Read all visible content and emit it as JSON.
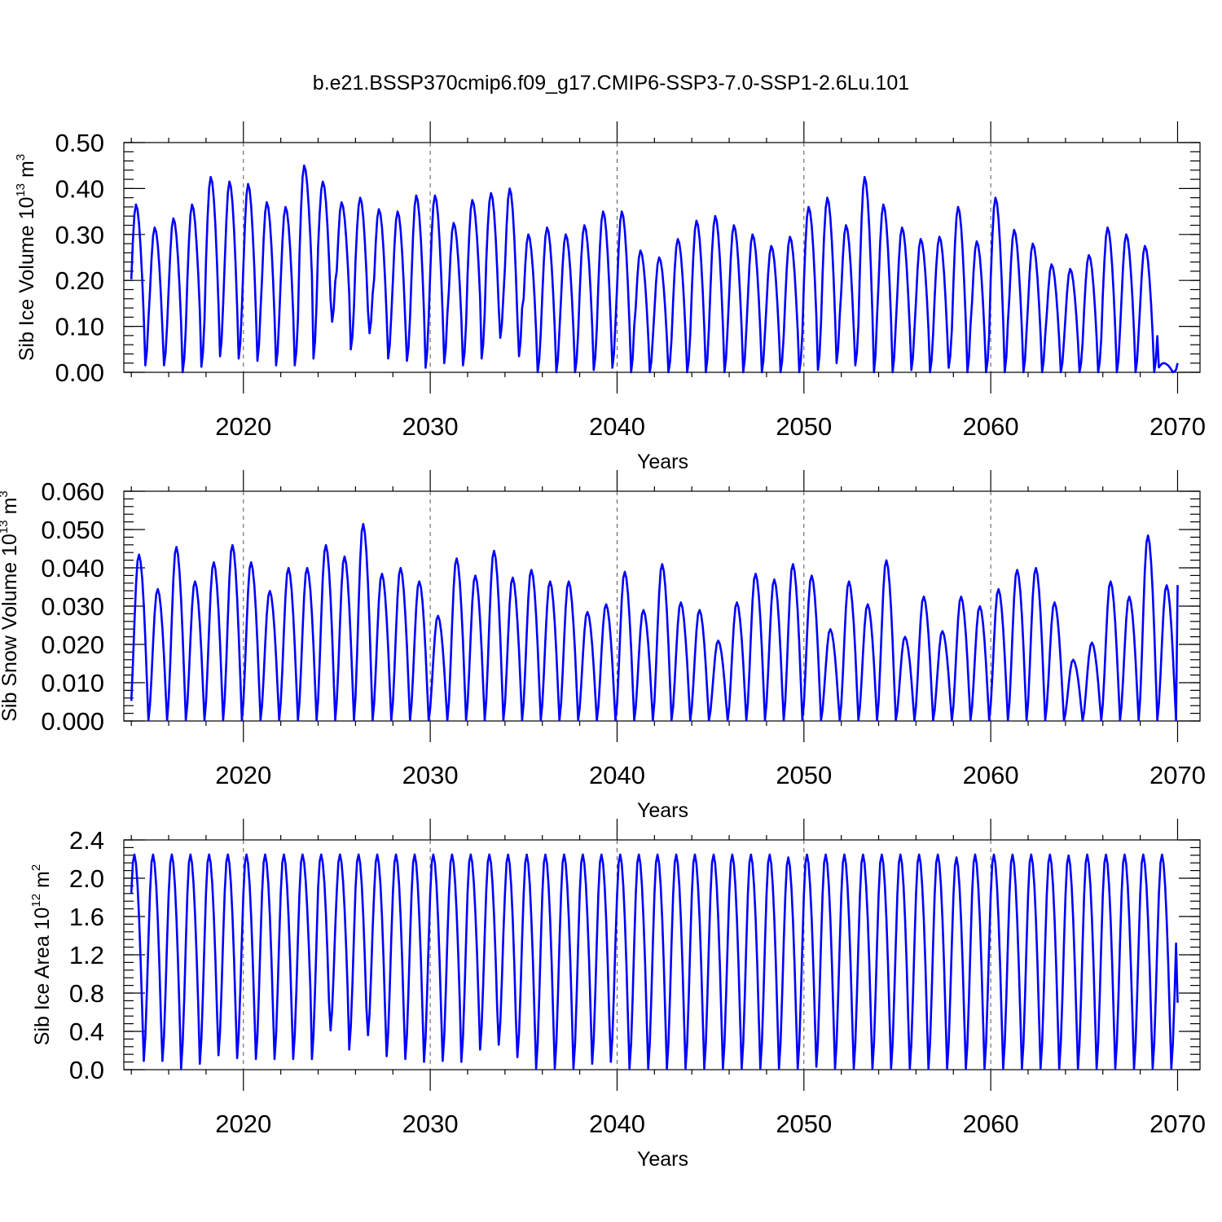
{
  "chart_data": [
    {
      "type": "line",
      "title": "b.e21.BSSP370cmip6.f09_g17.CMIP6-SSP3-7.0-SSP1-2.6Lu.101",
      "ylabel": "Sib Ice Volume 10",
      "ylabel_sup": "13",
      "ylabel_unit": " m",
      "ylabel_unit_sup": "3",
      "xlabel": "Years",
      "xlim": [
        2013.6,
        2071.2
      ],
      "ylim": [
        0,
        0.5
      ],
      "yticks": [
        0,
        0.1,
        0.2,
        0.3,
        0.4,
        0.5
      ],
      "ytick_labels": [
        "0.00",
        "0.10",
        "0.20",
        "0.30",
        "0.40",
        "0.50"
      ],
      "xticks": [
        2020,
        2030,
        2040,
        2050,
        2060,
        2070
      ],
      "xtick_labels": [
        "2020",
        "2030",
        "2040",
        "2050",
        "2060",
        "2070"
      ],
      "grid_x": [
        2020,
        2030,
        2040,
        2050,
        2060
      ],
      "color": "#0000ff",
      "series": [
        {
          "name": "Sib Ice Volume",
          "seasonal_cycle": {
            "start_year": 2014,
            "end_year": 2070,
            "peak_month_offset": 0.25,
            "annual_max": [
              0.365,
              0.315,
              0.335,
              0.365,
              0.425,
              0.415,
              0.41,
              0.37,
              0.36,
              0.45,
              0.415,
              0.37,
              0.38,
              0.355,
              0.35,
              0.385,
              0.385,
              0.325,
              0.375,
              0.39,
              0.4,
              0.3,
              0.315,
              0.3,
              0.32,
              0.35,
              0.35,
              0.265,
              0.25,
              0.29,
              0.33,
              0.34,
              0.32,
              0.3,
              0.275,
              0.295,
              0.36,
              0.38,
              0.32,
              0.425,
              0.365,
              0.315,
              0.29,
              0.295,
              0.36,
              0.285,
              0.38,
              0.31,
              0.28,
              0.235,
              0.225,
              0.255,
              0.315,
              0.3,
              0.275,
              0.02
            ],
            "annual_min": [
              0.015,
              0.0,
              0.012,
              0.035,
              0.03,
              0.025,
              0.015,
              0.015,
              0.03,
              0.11,
              0.05,
              0.085,
              0.03,
              0.025,
              0.01,
              0.02,
              0.015,
              0.03,
              0.075,
              0.035,
              0.0,
              0.0,
              0.0,
              0.005,
              0.01,
              0.0,
              0.0,
              0.0,
              0.0,
              0.0,
              0.0,
              0.0,
              0.0,
              0.0,
              0.0,
              0.005,
              0.02,
              0.015,
              0.0,
              0.0,
              0.005,
              0.0,
              0.01,
              0.0,
              0.0,
              0.0,
              0.0,
              0.0,
              0.0,
              0.0,
              0.0,
              0.0,
              0.0,
              0.0,
              0.0,
              0.0
            ]
          }
        }
      ]
    },
    {
      "type": "line",
      "title": "",
      "ylabel": "Sib Snow Volume 10",
      "ylabel_sup": "13",
      "ylabel_unit": " m",
      "ylabel_unit_sup": "3",
      "xlabel": "Years",
      "xlim": [
        2013.6,
        2071.2
      ],
      "ylim": [
        0,
        0.06
      ],
      "yticks": [
        0,
        0.01,
        0.02,
        0.03,
        0.04,
        0.05,
        0.06
      ],
      "ytick_labels": [
        "0.000",
        "0.010",
        "0.020",
        "0.030",
        "0.040",
        "0.050",
        "0.060"
      ],
      "xticks": [
        2020,
        2030,
        2040,
        2050,
        2060,
        2070
      ],
      "xtick_labels": [
        "2020",
        "2030",
        "2040",
        "2050",
        "2060",
        "2070"
      ],
      "grid_x": [
        2020,
        2030,
        2040,
        2050,
        2060
      ],
      "color": "#0000ff",
      "series": [
        {
          "name": "Sib Snow Volume",
          "seasonal_cycle": {
            "start_year": 2014,
            "end_year": 2070,
            "peak_month_offset": 0.4,
            "annual_max": [
              0.0435,
              0.0345,
              0.0455,
              0.0365,
              0.0415,
              0.046,
              0.0415,
              0.034,
              0.04,
              0.04,
              0.046,
              0.043,
              0.0515,
              0.0385,
              0.04,
              0.0365,
              0.0275,
              0.0425,
              0.038,
              0.0445,
              0.0375,
              0.0395,
              0.0365,
              0.0365,
              0.0285,
              0.0305,
              0.039,
              0.029,
              0.041,
              0.031,
              0.029,
              0.021,
              0.031,
              0.0385,
              0.037,
              0.041,
              0.038,
              0.024,
              0.0365,
              0.0305,
              0.042,
              0.022,
              0.0325,
              0.0235,
              0.0325,
              0.03,
              0.0345,
              0.0395,
              0.04,
              0.031,
              0.016,
              0.0205,
              0.0365,
              0.0325,
              0.0485,
              0.0355
            ],
            "annual_min": [
              0.0,
              0.0,
              0.0,
              0.0,
              0.0,
              0.0,
              0.0,
              0.0,
              0.0,
              0.0,
              0.0,
              0.0,
              0.0,
              0.0,
              0.0,
              0.0,
              0.0,
              0.0,
              0.0,
              0.0,
              0.0,
              0.0,
              0.0,
              0.0,
              0.0,
              0.0,
              0.0,
              0.0,
              0.0,
              0.0,
              0.0,
              0.0,
              0.0,
              0.0,
              0.0,
              0.0,
              0.0,
              0.0,
              0.0,
              0.0,
              0.0,
              0.0,
              0.0,
              0.0,
              0.0,
              0.0,
              0.0,
              0.0,
              0.0,
              0.0,
              0.0,
              0.0,
              0.0,
              0.0,
              0.0,
              0.0
            ]
          }
        }
      ]
    },
    {
      "type": "line",
      "title": "",
      "ylabel": "Sib Ice Area 10",
      "ylabel_sup": "12",
      "ylabel_unit": " m",
      "ylabel_unit_sup": "2",
      "xlabel": "Years",
      "xlim": [
        2013.6,
        2071.2
      ],
      "ylim": [
        0,
        2.4
      ],
      "yticks": [
        0,
        0.4,
        0.8,
        1.2,
        1.6,
        2.0,
        2.4
      ],
      "ytick_labels": [
        "0.0",
        "0.4",
        "0.8",
        "1.2",
        "1.6",
        "2.0",
        "2.4"
      ],
      "xticks": [
        2020,
        2030,
        2040,
        2050,
        2060,
        2070
      ],
      "xtick_labels": [
        "2020",
        "2030",
        "2040",
        "2050",
        "2060",
        "2070"
      ],
      "grid_x": [
        2020,
        2030,
        2040,
        2050,
        2060
      ],
      "color": "#0000ff",
      "series": [
        {
          "name": "Sib Ice Area",
          "seasonal_cycle": {
            "start_year": 2014,
            "end_year": 2070,
            "peak_month_offset": 0.15,
            "annual_max": [
              2.25,
              2.25,
              2.25,
              2.25,
              2.25,
              2.25,
              2.25,
              2.25,
              2.25,
              2.25,
              2.25,
              2.25,
              2.25,
              2.25,
              2.25,
              2.25,
              2.25,
              2.25,
              2.25,
              2.25,
              2.25,
              2.25,
              2.25,
              2.25,
              2.25,
              2.25,
              2.25,
              2.25,
              2.25,
              2.25,
              2.25,
              2.25,
              2.25,
              2.25,
              2.25,
              2.22,
              2.25,
              2.25,
              2.25,
              2.25,
              2.25,
              2.25,
              2.25,
              2.25,
              2.22,
              2.25,
              2.25,
              2.25,
              2.25,
              2.25,
              2.24,
              2.25,
              2.25,
              2.25,
              2.25,
              2.25
            ],
            "annual_min": [
              0.08,
              0.0,
              0.05,
              0.14,
              0.11,
              0.1,
              0.1,
              0.1,
              0.1,
              0.4,
              0.2,
              0.35,
              0.13,
              0.1,
              0.07,
              0.08,
              0.07,
              0.2,
              0.25,
              0.12,
              0.0,
              0.0,
              0.0,
              0.05,
              0.07,
              0.0,
              0.0,
              0.0,
              0.0,
              0.0,
              0.0,
              0.0,
              0.0,
              0.0,
              0.0,
              0.02,
              0.0,
              0.0,
              0.0,
              0.0,
              0.0,
              0.0,
              0.0,
              0.0,
              0.0,
              0.0,
              0.0,
              0.0,
              0.0,
              0.0,
              0.0,
              0.0,
              0.0,
              0.0,
              0.0,
              0.0
            ],
            "end_value": 0.7
          }
        }
      ]
    }
  ]
}
